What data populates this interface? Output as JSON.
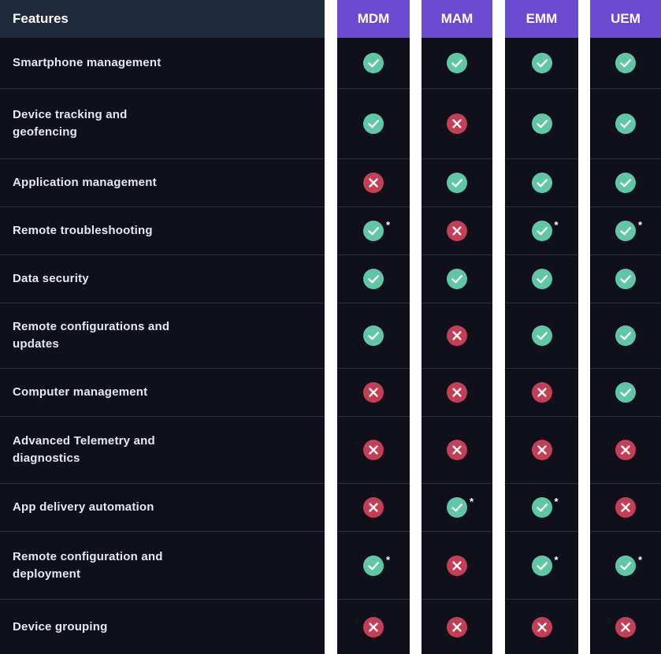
{
  "headers": {
    "features": "Features",
    "plans": [
      "MDM",
      "MAM",
      "EMM",
      "UEM"
    ]
  },
  "colors": {
    "check": "#5fc7a5",
    "cross": "#c43e55",
    "plan_header": "#6a4bd0",
    "features_header": "#1e2b3c",
    "body": "#10101a"
  },
  "star_symbol": "*",
  "rows": [
    {
      "feature": "Smartphone management",
      "MDM": "check",
      "MAM": "check",
      "EMM": "check",
      "UEM": "check"
    },
    {
      "feature": "Device tracking  and geofencing",
      "MDM": "check",
      "MAM": "cross",
      "EMM": "check",
      "UEM": "check"
    },
    {
      "feature": "Application management",
      "MDM": "cross",
      "MAM": "check",
      "EMM": "check",
      "UEM": "check"
    },
    {
      "feature": "Remote troubleshooting",
      "MDM": "check*",
      "MAM": "cross",
      "EMM": "check*",
      "UEM": "check*"
    },
    {
      "feature": "Data security",
      "MDM": "check",
      "MAM": "check",
      "EMM": "check",
      "UEM": "check"
    },
    {
      "feature": "Remote configurations and updates",
      "MDM": "check",
      "MAM": "cross",
      "EMM": "check",
      "UEM": "check"
    },
    {
      "feature": "Computer management",
      "MDM": "cross",
      "MAM": "cross",
      "EMM": "cross",
      "UEM": "check"
    },
    {
      "feature": "Advanced Telemetry and diagnostics",
      "MDM": "cross",
      "MAM": "cross",
      "EMM": "cross",
      "UEM": "cross"
    },
    {
      "feature": "App delivery automation",
      "MDM": "cross",
      "MAM": "check*",
      "EMM": "check*",
      "UEM": "cross"
    },
    {
      "feature": "Remote configuration and deployment",
      "MDM": "check*",
      "MAM": "cross",
      "EMM": "check*",
      "UEM": "check*"
    },
    {
      "feature": "Device grouping",
      "MDM": "cross",
      "MAM": "cross",
      "EMM": "cross",
      "UEM": "cross"
    }
  ]
}
